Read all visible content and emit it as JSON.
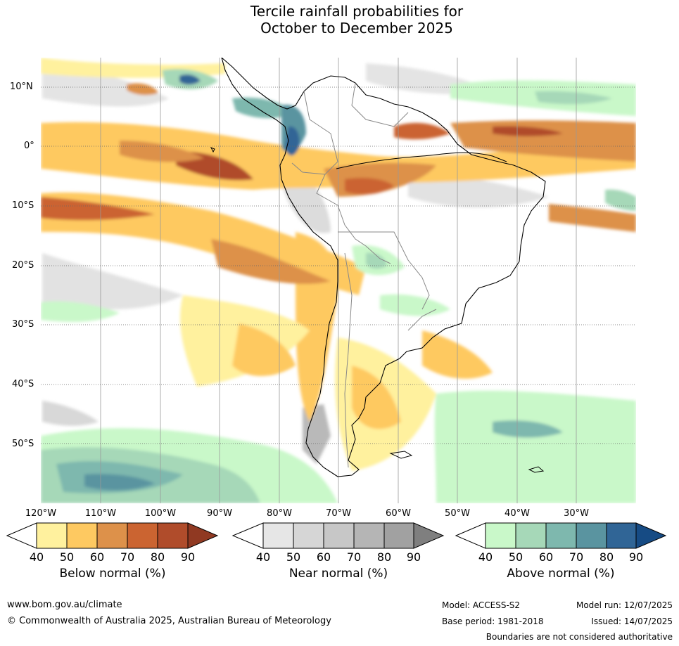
{
  "title": {
    "line1": "Tercile rainfall probabilities for",
    "line2": "October to December 2025"
  },
  "lat_labels": [
    "10°N",
    "0°",
    "10°S",
    "20°S",
    "30°S",
    "40°S",
    "50°S"
  ],
  "lon_labels": [
    "120°W",
    "110°W",
    "100°W",
    "90°W",
    "80°W",
    "70°W",
    "60°W",
    "50°W",
    "40°W",
    "30°W"
  ],
  "colorbars": [
    {
      "title": "Below normal (%)",
      "ticks": [
        "40",
        "50",
        "60",
        "70",
        "80",
        "90"
      ],
      "colors": [
        "#fff19e",
        "#fec961",
        "#dd914a",
        "#cb6431",
        "#b04c2b",
        "#903922"
      ]
    },
    {
      "title": "Near normal (%)",
      "ticks": [
        "40",
        "50",
        "60",
        "70",
        "80",
        "90"
      ],
      "colors": [
        "#e6e6e6",
        "#d6d6d6",
        "#c7c7c7",
        "#b5b5b5",
        "#a1a1a1",
        "#7f7f7f"
      ]
    },
    {
      "title": "Above normal (%)",
      "ticks": [
        "40",
        "50",
        "60",
        "70",
        "80",
        "90"
      ],
      "colors": [
        "#c9f8c9",
        "#a6d8b8",
        "#7eb8ae",
        "#5a94a0",
        "#306596",
        "#164b84"
      ]
    }
  ],
  "footer": {
    "website": "www.bom.gov.au/climate",
    "copyright": "© Commonwealth of Australia 2025, Australian Bureau of Meteorology",
    "model": "Model: ACCESS-S2",
    "base_period": "Base period: 1981-2018",
    "model_run": "Model run: 12/07/2025",
    "issued": "Issued: 14/07/2025",
    "disclaimer": "Boundaries are not considered authoritative"
  }
}
